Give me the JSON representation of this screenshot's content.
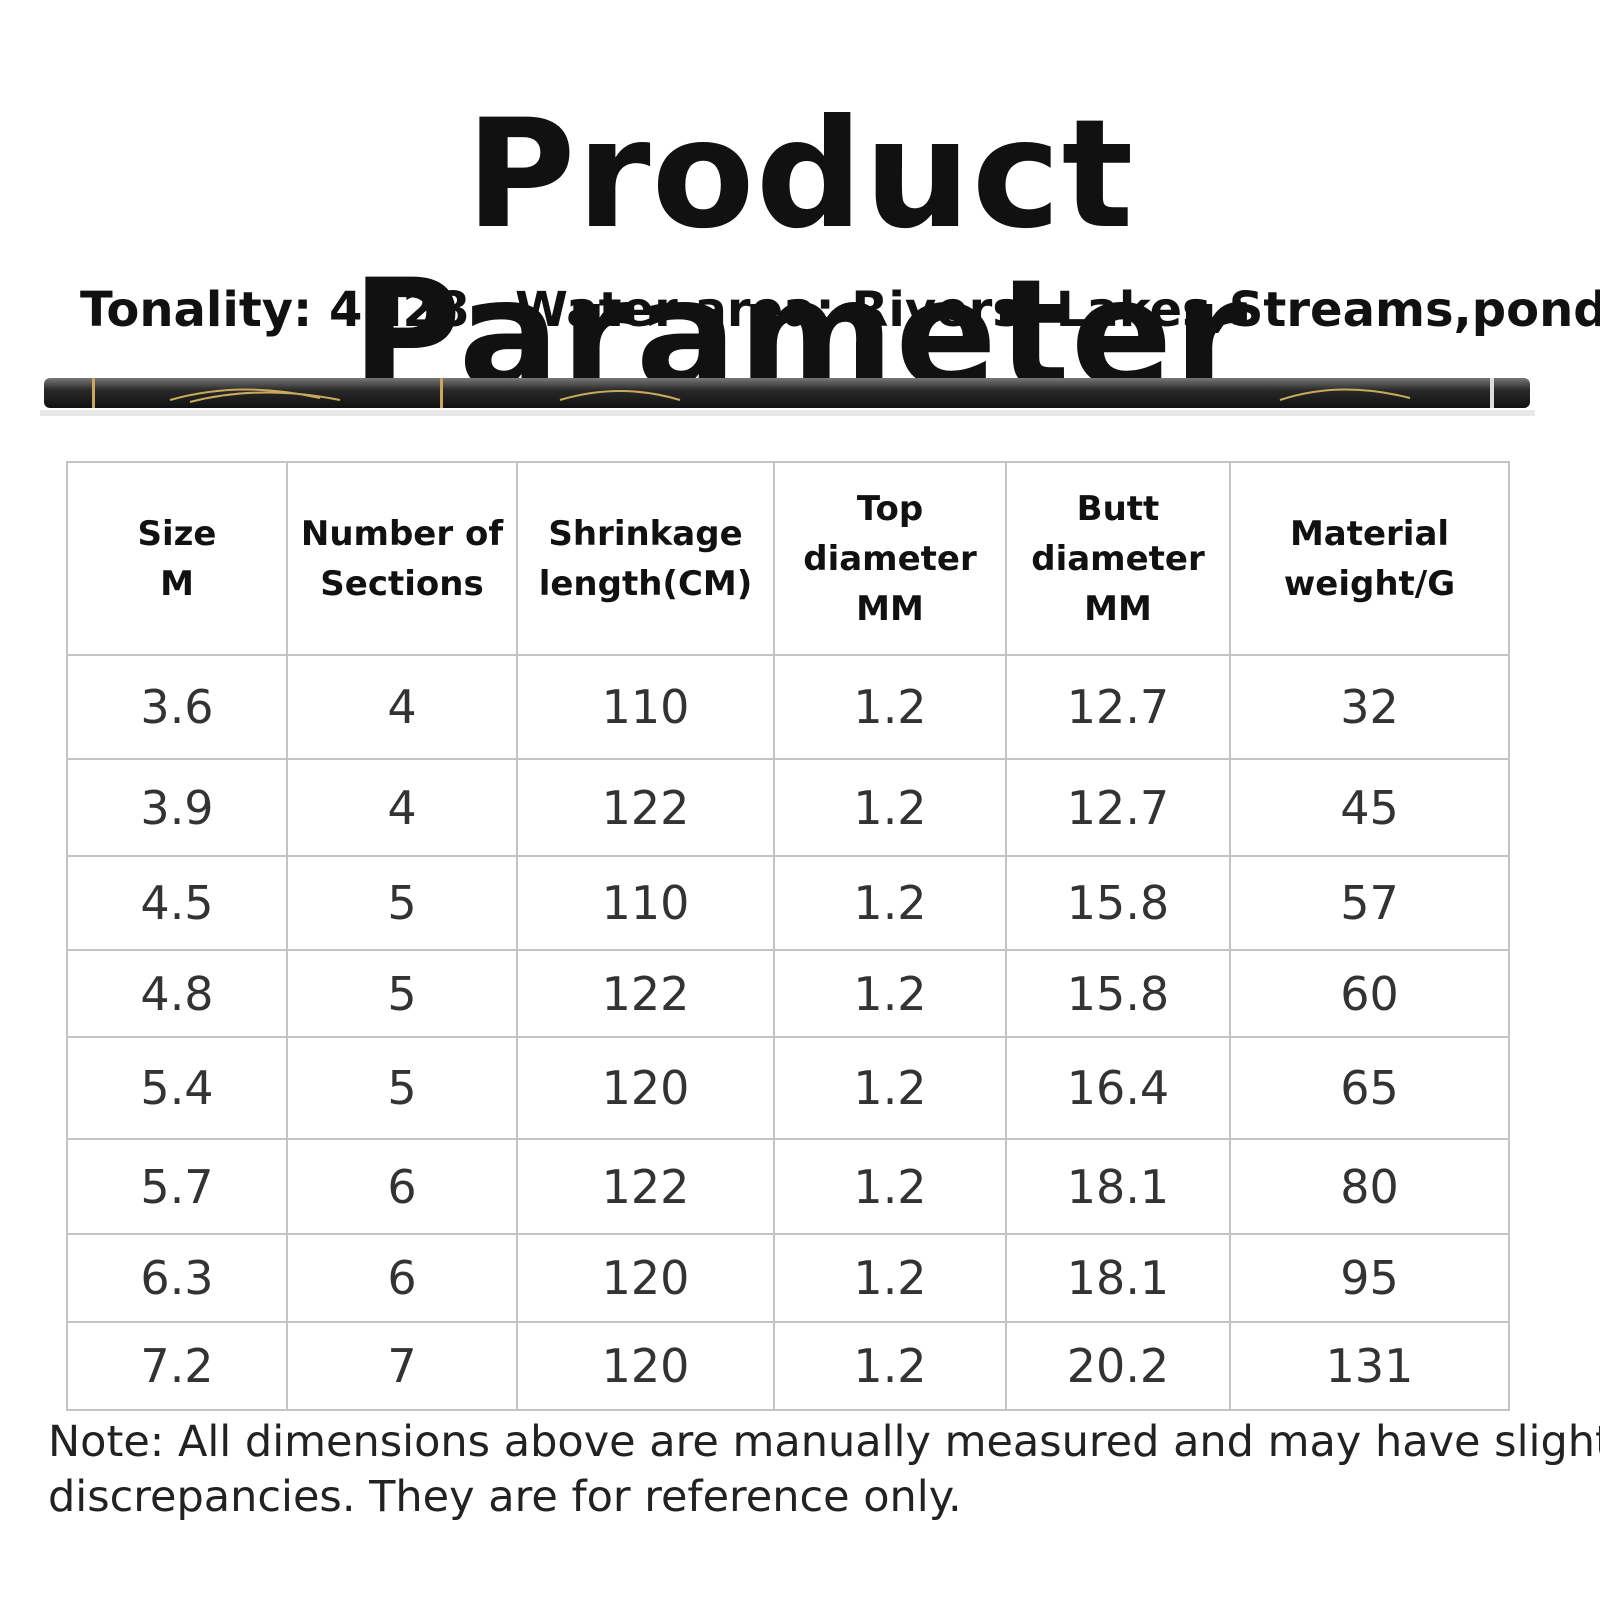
{
  "header": {
    "title": "Product Parameter",
    "tonality": "Tonality: 4H28",
    "water_area": "Water area: Rivers, Lakes,Streams,ponds"
  },
  "table": {
    "columns": [
      [
        "Size",
        "M"
      ],
      [
        "Number of",
        "Sections"
      ],
      [
        "Shrinkage",
        "length(CM)"
      ],
      [
        "Top",
        "diameter",
        "MM"
      ],
      [
        "Butt",
        "diameter",
        "MM"
      ],
      [
        "Material",
        "weight/G"
      ]
    ],
    "rows": [
      [
        "3.6",
        "4",
        "110",
        "1.2",
        "12.7",
        "32"
      ],
      [
        "3.9",
        "4",
        "122",
        "1.2",
        "12.7",
        "45"
      ],
      [
        "4.5",
        "5",
        "110",
        "1.2",
        "15.8",
        "57"
      ],
      [
        "4.8",
        "5",
        "122",
        "1.2",
        "15.8",
        "60"
      ],
      [
        "5.4",
        "5",
        "120",
        "1.2",
        "16.4",
        "65"
      ],
      [
        "5.7",
        "6",
        "122",
        "1.2",
        "18.1",
        "80"
      ],
      [
        "6.3",
        "6",
        "120",
        "1.2",
        "18.1",
        "95"
      ],
      [
        "7.2",
        "7",
        "120",
        "1.2",
        "20.2",
        "131"
      ]
    ]
  },
  "note": [
    "Note: All dimensions above are manually measured and may have slight",
    "discrepancies. They are for reference only."
  ]
}
